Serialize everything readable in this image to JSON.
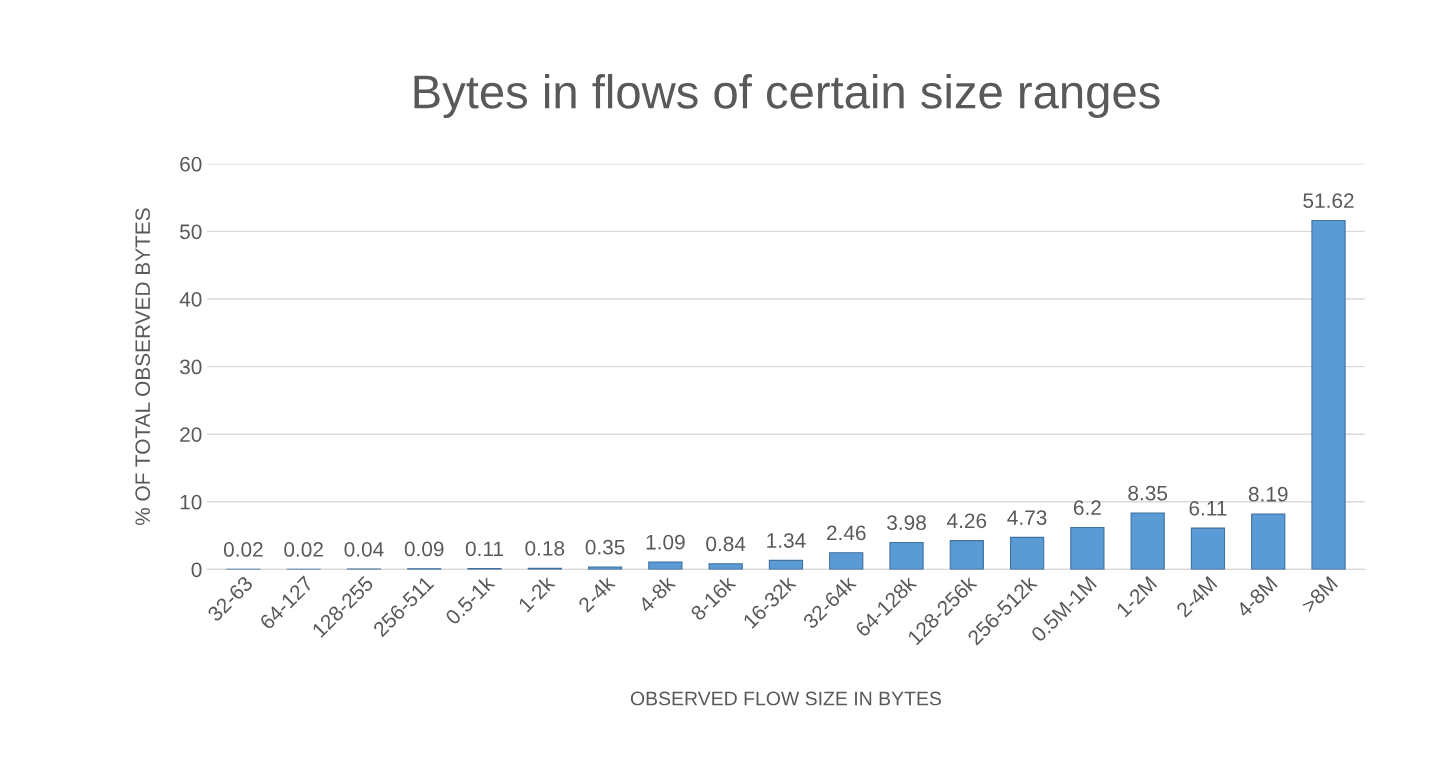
{
  "chart_data": {
    "type": "bar",
    "title": "Bytes in flows of certain size ranges",
    "xlabel": "OBSERVED FLOW SIZE IN BYTES",
    "ylabel": "% OF TOTAL OBSERVED BYTES",
    "categories": [
      "32-63",
      "64-127",
      "128-255",
      "256-511",
      "0.5-1k",
      "1-2k",
      "2-4k",
      "4-8k",
      "8-16k",
      "16-32k",
      "32-64k",
      "64-128k",
      "128-256k",
      "256-512k",
      "0.5M-1M",
      "1-2M",
      "2-4M",
      "4-8M",
      ">8M"
    ],
    "values": [
      0.02,
      0.02,
      0.04,
      0.09,
      0.11,
      0.18,
      0.35,
      1.09,
      0.84,
      1.34,
      2.46,
      3.98,
      4.26,
      4.73,
      6.2,
      8.35,
      6.11,
      8.19,
      51.62
    ],
    "color": "#5b9bd5",
    "ylim": [
      0,
      60
    ],
    "yticks": [
      0,
      10,
      20,
      30,
      40,
      50,
      60
    ],
    "grid": "y",
    "data_labels": true
  }
}
